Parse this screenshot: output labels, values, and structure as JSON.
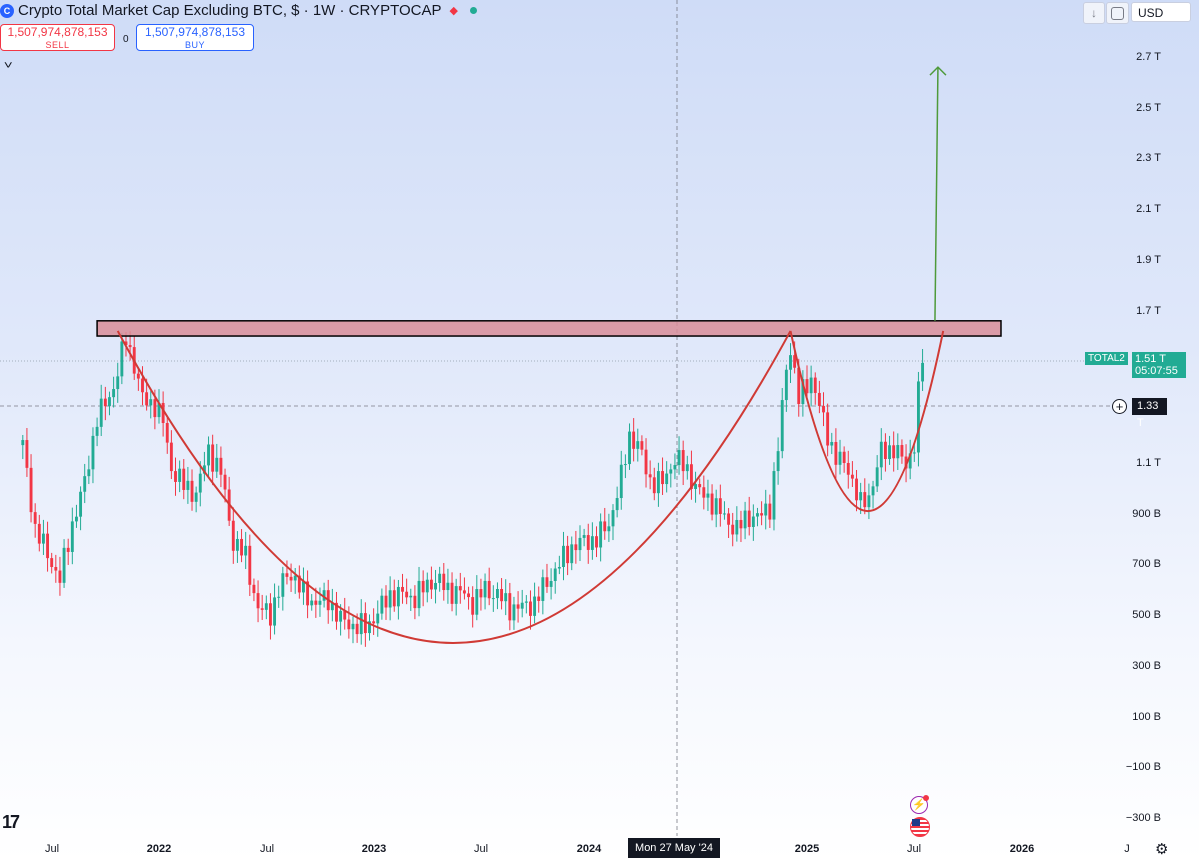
{
  "header": {
    "symbol_icon": "C",
    "title": "Crypto Total Market Cap Excluding BTC, $ · 1W · CRYPTOCAP",
    "flag_icon": "red-triangle-icon",
    "status_dot": "market-status-dot"
  },
  "trade": {
    "sell_price": "1,507,974,878,153",
    "sell_label": "SELL",
    "spread": "0",
    "buy_price": "1,507,974,878,153",
    "buy_label": "BUY"
  },
  "controls": {
    "down_arrow": "↓",
    "currency": "USD"
  },
  "price_axis": {
    "labels": [
      "2.7 T",
      "2.5 T",
      "2.3 T",
      "2.1 T",
      "1.9 T",
      "1.7 T",
      "1.1 T",
      "900 B",
      "700 B",
      "500 B",
      "300 B",
      "100 B",
      "−100 B",
      "−300 B"
    ]
  },
  "time_axis": {
    "labels": [
      "Jul",
      "2022",
      "Jul",
      "2023",
      "Jul",
      "2024",
      "2025",
      "Jul",
      "2026",
      "J"
    ],
    "crosshair_date": "Mon 27 May '24"
  },
  "tags": {
    "series_name": "TOTAL2",
    "last_price": "1.51 T",
    "countdown": "05:07:55",
    "crosshair_price": "1.33 T",
    "plus": "+"
  },
  "logo": "17",
  "colors": {
    "up": "#22ab94",
    "down": "#f23645",
    "arc": "#d03a35",
    "zone_fill": "#d98d98",
    "arrow": "#4e9a3a"
  },
  "chart_data": {
    "type": "candlestick",
    "title": "Crypto Total Market Cap Excluding BTC, $ · 1W · CRYPTOCAP",
    "ylabel": "",
    "y_unit": "USD",
    "ylim": [
      -330000000000,
      2820000000000
    ],
    "xlim": [
      "2021-05-15",
      "2026-07-10"
    ],
    "resistance_zone": {
      "low": 1600000000000,
      "high": 1660000000000,
      "from": "2021-09-20",
      "to": "2025-12-01"
    },
    "target_arrow": {
      "date": "2025-08-11",
      "from": 1660000000000,
      "to": 2660000000000
    },
    "last_price": 1510000000000,
    "crosshair": {
      "date": "2024-05-27",
      "price": 1330000000000
    },
    "series": [
      {
        "name": "TOTAL2",
        "points": [
          [
            "2021-05-17",
            1.17
          ],
          [
            "2021-06-07",
            0.84
          ],
          [
            "2021-06-28",
            0.74
          ],
          [
            "2021-07-19",
            0.64
          ],
          [
            "2021-08-09",
            0.86
          ],
          [
            "2021-08-30",
            1.02
          ],
          [
            "2021-09-20",
            1.28
          ],
          [
            "2021-10-04",
            1.33
          ],
          [
            "2021-10-18",
            1.4
          ],
          [
            "2021-11-08",
            1.59
          ],
          [
            "2021-11-22",
            1.49
          ],
          [
            "2021-12-06",
            1.35
          ],
          [
            "2021-12-27",
            1.33
          ],
          [
            "2022-01-10",
            1.26
          ],
          [
            "2022-01-24",
            1.08
          ],
          [
            "2022-02-14",
            1.01
          ],
          [
            "2022-03-07",
            0.98
          ],
          [
            "2022-03-28",
            1.15
          ],
          [
            "2022-04-18",
            1.06
          ],
          [
            "2022-05-09",
            0.79
          ],
          [
            "2022-05-30",
            0.73
          ],
          [
            "2022-06-20",
            0.52
          ],
          [
            "2022-07-11",
            0.51
          ],
          [
            "2022-08-01",
            0.63
          ],
          [
            "2022-08-15",
            0.67
          ],
          [
            "2022-09-05",
            0.58
          ],
          [
            "2022-09-26",
            0.55
          ],
          [
            "2022-10-17",
            0.56
          ],
          [
            "2022-11-07",
            0.48
          ],
          [
            "2022-11-28",
            0.46
          ],
          [
            "2022-12-19",
            0.45
          ],
          [
            "2023-01-09",
            0.51
          ],
          [
            "2023-01-30",
            0.58
          ],
          [
            "2023-02-20",
            0.58
          ],
          [
            "2023-03-13",
            0.57
          ],
          [
            "2023-04-03",
            0.62
          ],
          [
            "2023-04-17",
            0.64
          ],
          [
            "2023-05-08",
            0.6
          ],
          [
            "2023-05-29",
            0.59
          ],
          [
            "2023-06-19",
            0.55
          ],
          [
            "2023-07-10",
            0.6
          ],
          [
            "2023-07-31",
            0.58
          ],
          [
            "2023-08-21",
            0.53
          ],
          [
            "2023-09-11",
            0.53
          ],
          [
            "2023-10-02",
            0.55
          ],
          [
            "2023-10-23",
            0.63
          ],
          [
            "2023-11-13",
            0.7
          ],
          [
            "2023-12-04",
            0.77
          ],
          [
            "2023-12-25",
            0.79
          ],
          [
            "2024-01-15",
            0.8
          ],
          [
            "2024-02-05",
            0.86
          ],
          [
            "2024-02-26",
            1.04
          ],
          [
            "2024-03-11",
            1.21
          ],
          [
            "2024-03-25",
            1.17
          ],
          [
            "2024-04-15",
            1.03
          ],
          [
            "2024-05-06",
            1.02
          ],
          [
            "2024-05-27",
            1.12
          ],
          [
            "2024-06-17",
            1.07
          ],
          [
            "2024-07-08",
            0.98
          ],
          [
            "2024-07-29",
            0.95
          ],
          [
            "2024-08-19",
            0.88
          ],
          [
            "2024-09-09",
            0.84
          ],
          [
            "2024-09-30",
            0.89
          ],
          [
            "2024-10-21",
            0.89
          ],
          [
            "2024-11-04",
            0.93
          ],
          [
            "2024-11-18",
            1.16
          ],
          [
            "2024-12-02",
            1.47
          ],
          [
            "2024-12-09",
            1.56
          ],
          [
            "2024-12-23",
            1.35
          ],
          [
            "2025-01-13",
            1.44
          ],
          [
            "2025-02-03",
            1.26
          ],
          [
            "2025-02-24",
            1.12
          ],
          [
            "2025-03-17",
            1.08
          ],
          [
            "2025-04-07",
            0.93
          ],
          [
            "2025-04-21",
            0.97
          ],
          [
            "2025-05-12",
            1.14
          ],
          [
            "2025-06-02",
            1.16
          ],
          [
            "2025-06-23",
            1.09
          ],
          [
            "2025-07-07",
            1.18
          ],
          [
            "2025-07-14",
            1.37
          ],
          [
            "2025-07-21",
            1.51
          ]
        ]
      }
    ]
  }
}
